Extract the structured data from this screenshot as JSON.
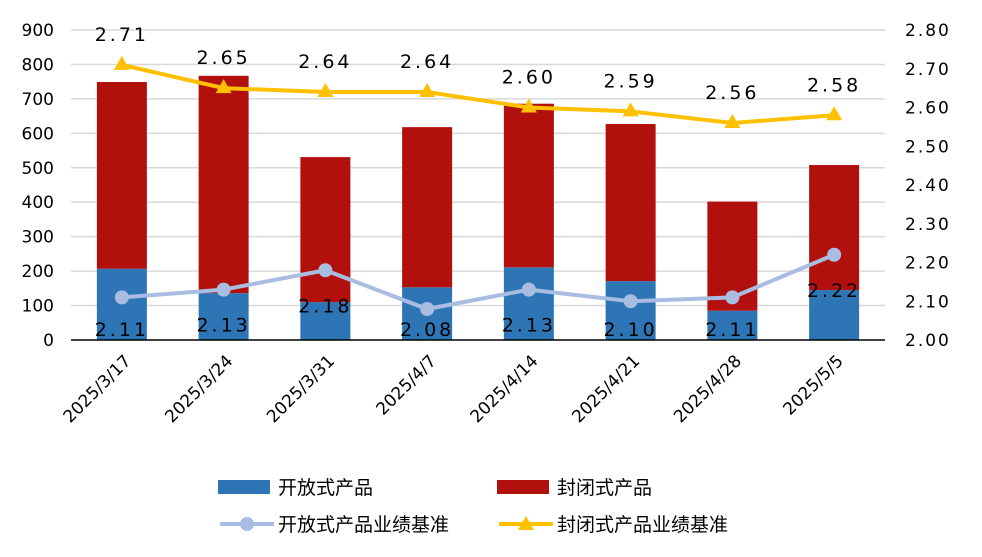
{
  "chart_data": {
    "type": "bar+line",
    "categories": [
      "2025/3/17",
      "2025/3/24",
      "2025/3/31",
      "2025/4/7",
      "2025/4/14",
      "2025/4/21",
      "2025/4/28",
      "2025/5/5"
    ],
    "series": [
      {
        "name": "开放式产品",
        "kind": "stacked-bar",
        "axis": "left",
        "color": "#2E75B6",
        "values": [
          207,
          136,
          110,
          153,
          211,
          171,
          85,
          145
        ]
      },
      {
        "name": "封闭式产品",
        "kind": "stacked-bar",
        "axis": "left",
        "color": "#B2100D",
        "values": [
          542,
          631,
          421,
          465,
          475,
          456,
          317,
          363
        ]
      },
      {
        "name": "开放式产品业绩基准",
        "kind": "line",
        "axis": "right",
        "color": "#A9BCE2",
        "marker": "circle",
        "values": [
          2.11,
          2.13,
          2.18,
          2.08,
          2.13,
          2.1,
          2.11,
          2.22
        ],
        "labels": [
          "2.11",
          "2.13",
          "2.18",
          "2.08",
          "2.13",
          "2.10",
          "2.11",
          "2.22"
        ]
      },
      {
        "name": "封闭式产品业绩基准",
        "kind": "line",
        "axis": "right",
        "color": "#FFC000",
        "marker": "triangle",
        "values": [
          2.71,
          2.65,
          2.64,
          2.64,
          2.6,
          2.59,
          2.56,
          2.58
        ],
        "labels": [
          "2.71",
          "2.65",
          "2.64",
          "2.64",
          "2.60",
          "2.59",
          "2.56",
          "2.58"
        ]
      }
    ],
    "ylim": [
      0,
      900
    ],
    "y2lim": [
      2.0,
      2.8
    ],
    "yticks": [
      "0",
      "100",
      "200",
      "300",
      "400",
      "500",
      "600",
      "700",
      "800",
      "900"
    ],
    "y2ticks": [
      "2.00",
      "2.10",
      "2.20",
      "2.30",
      "2.40",
      "2.50",
      "2.60",
      "2.70",
      "2.80"
    ],
    "grid": true,
    "legend_position": "bottom"
  }
}
